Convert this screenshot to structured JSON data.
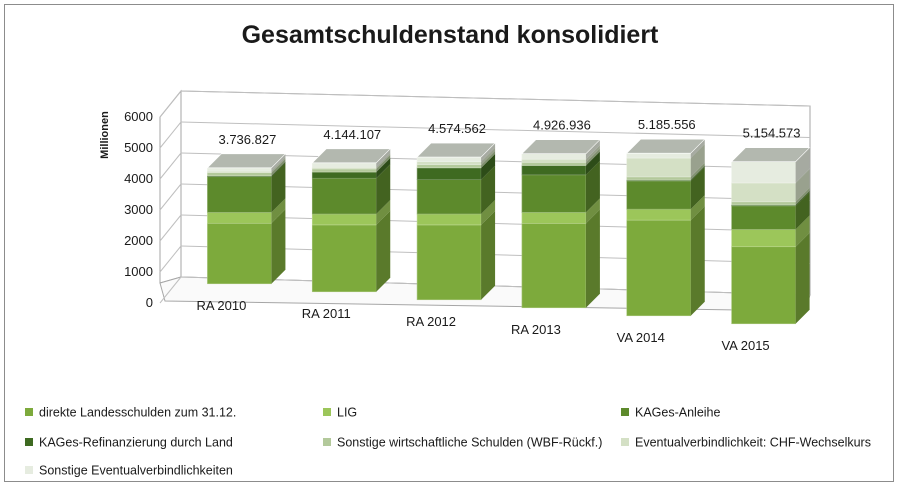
{
  "chart_data": {
    "type": "bar",
    "stacked": true,
    "three_d": true,
    "title": "Gesamtschuldenstand konsolidiert",
    "ylabel": "Millionen",
    "ylim": [
      0,
      6000
    ],
    "yticks": [
      0,
      1000,
      2000,
      3000,
      4000,
      5000,
      6000
    ],
    "categories": [
      "RA 2010",
      "RA 2011",
      "RA 2012",
      "RA 2013",
      "VA 2014",
      "VA 2015"
    ],
    "totals": [
      "3.736.827",
      "4.144.107",
      "4.574.562",
      "4.926.936",
      "5.185.556",
      "5.154.573"
    ],
    "series": [
      {
        "name": "direkte Landesschulden zum 31.12.",
        "color": "#7daa3c",
        "values": [
          1950,
          2150,
          2400,
          2700,
          3050,
          2450
        ]
      },
      {
        "name": "LIG",
        "color": "#9cc65a",
        "values": [
          350,
          350,
          350,
          350,
          350,
          550
        ]
      },
      {
        "name": "KAGes-Anleihe",
        "color": "#5d8a2c",
        "values": [
          1150,
          1150,
          1100,
          1200,
          900,
          750
        ]
      },
      {
        "name": "KAGes-Refinanzierung durch Land",
        "color": "#3e6a21",
        "values": [
          30,
          200,
          380,
          300,
          30,
          30
        ]
      },
      {
        "name": "Sonstige wirtschaftliche Schulden (WBF-Rückf.)",
        "color": "#b3c99b",
        "values": [
          100,
          100,
          100,
          100,
          100,
          100
        ]
      },
      {
        "name": "Eventualverbindlichkeit: CHF-Wechselkurs",
        "color": "#d4e0c5",
        "values": [
          50,
          50,
          100,
          100,
          600,
          600
        ]
      },
      {
        "name": "Sonstige Eventualverbindlichkeiten",
        "color": "#e6ece0",
        "values": [
          107,
          144,
          145,
          177,
          156,
          675
        ]
      }
    ],
    "legend_position": "bottom",
    "grid": true
  }
}
